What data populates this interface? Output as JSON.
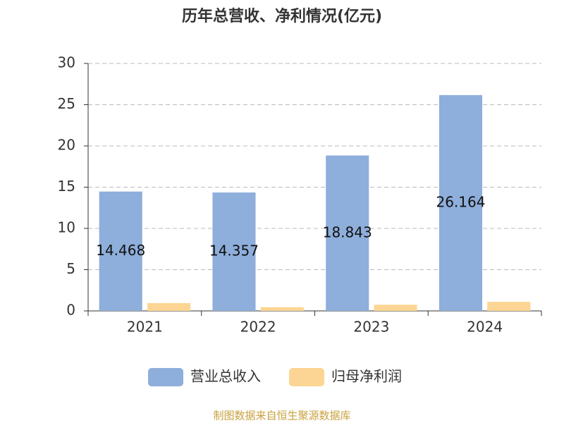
{
  "chart_data": {
    "type": "bar",
    "title": "历年总营收、净利情况(亿元)",
    "categories": [
      "2021",
      "2022",
      "2023",
      "2024"
    ],
    "series": [
      {
        "name": "营业总收入",
        "color": "#8eaedb",
        "values": [
          14.468,
          14.357,
          18.843,
          26.164
        ]
      },
      {
        "name": "归母净利润",
        "color": "#fcd594",
        "values": [
          0.95,
          0.45,
          0.75,
          1.1
        ]
      }
    ],
    "ylim": [
      0,
      30
    ],
    "yticks": [
      0,
      5,
      10,
      15,
      20,
      25,
      30
    ],
    "grid": true,
    "legend": "bottom",
    "source": "制图数据来自恒生聚源数据库"
  }
}
